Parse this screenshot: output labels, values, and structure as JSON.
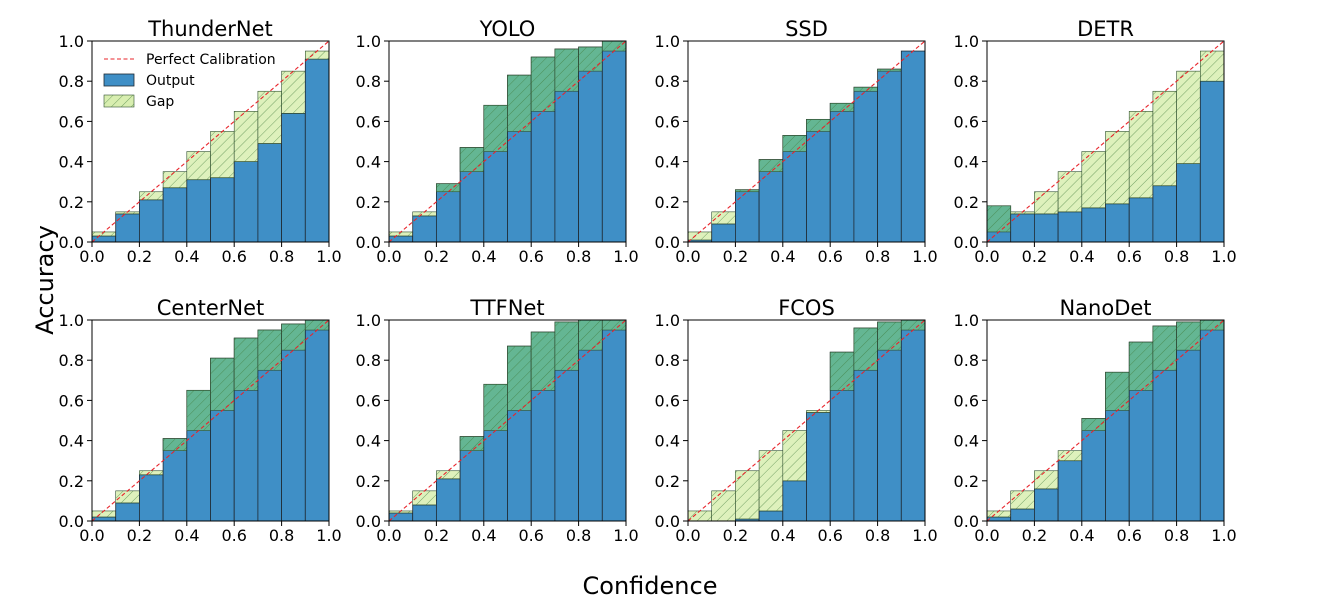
{
  "figure": {
    "xlabel": "Confidence",
    "ylabel": "Accuracy"
  },
  "legend": {
    "items": [
      {
        "label": "Perfect Calibration",
        "kind": "line"
      },
      {
        "label": "Output",
        "kind": "bar"
      },
      {
        "label": "Gap",
        "kind": "hatch"
      }
    ]
  },
  "colors": {
    "output": "#3f8fc6",
    "gap_over": "#6bbd8a",
    "gap_under": "#d8eeb0",
    "hatch": "#4a7a3a",
    "perfect_line": "#e8242b"
  },
  "chart_data": [
    {
      "type": "bar",
      "title": "ThunderNet",
      "xlim": [
        0,
        1
      ],
      "ylim": [
        0,
        1
      ],
      "xticks": [
        "0.0",
        "0.2",
        "0.4",
        "0.6",
        "0.8",
        "1.0"
      ],
      "yticks": [
        "0.0",
        "0.2",
        "0.4",
        "0.6",
        "0.8",
        "1.0"
      ],
      "bins": [
        0.05,
        0.15,
        0.25,
        0.35,
        0.45,
        0.55,
        0.65,
        0.75,
        0.85,
        0.95
      ],
      "accuracy": [
        0.03,
        0.14,
        0.21,
        0.27,
        0.31,
        0.32,
        0.4,
        0.49,
        0.64,
        0.91
      ],
      "series": [
        {
          "name": "Output"
        },
        {
          "name": "Gap"
        },
        {
          "name": "Perfect Calibration"
        }
      ]
    },
    {
      "type": "bar",
      "title": "YOLO",
      "xlim": [
        0,
        1
      ],
      "ylim": [
        0,
        1
      ],
      "xticks": [
        "0.0",
        "0.2",
        "0.4",
        "0.6",
        "0.8",
        "1.0"
      ],
      "yticks": [
        "0.0",
        "0.2",
        "0.4",
        "0.6",
        "0.8",
        "1.0"
      ],
      "bins": [
        0.05,
        0.15,
        0.25,
        0.35,
        0.45,
        0.55,
        0.65,
        0.75,
        0.85,
        0.95
      ],
      "accuracy": [
        0.03,
        0.13,
        0.29,
        0.47,
        0.68,
        0.83,
        0.92,
        0.96,
        0.97,
        1.0
      ]
    },
    {
      "type": "bar",
      "title": "SSD",
      "xlim": [
        0,
        1
      ],
      "ylim": [
        0,
        1
      ],
      "xticks": [
        "0.0",
        "0.2",
        "0.4",
        "0.6",
        "0.8",
        "1.0"
      ],
      "yticks": [
        "0.0",
        "0.2",
        "0.4",
        "0.6",
        "0.8",
        "1.0"
      ],
      "bins": [
        0.05,
        0.15,
        0.25,
        0.35,
        0.45,
        0.55,
        0.65,
        0.75,
        0.85,
        0.95
      ],
      "accuracy": [
        0.01,
        0.09,
        0.26,
        0.41,
        0.53,
        0.61,
        0.69,
        0.77,
        0.86,
        0.95
      ]
    },
    {
      "type": "bar",
      "title": "DETR",
      "xlim": [
        0,
        1
      ],
      "ylim": [
        0,
        1
      ],
      "xticks": [
        "0.0",
        "0.2",
        "0.4",
        "0.6",
        "0.8",
        "1.0"
      ],
      "yticks": [
        "0.0",
        "0.2",
        "0.4",
        "0.6",
        "0.8",
        "1.0"
      ],
      "bins": [
        0.05,
        0.15,
        0.25,
        0.35,
        0.45,
        0.55,
        0.65,
        0.75,
        0.85,
        0.95
      ],
      "accuracy": [
        0.18,
        0.14,
        0.14,
        0.15,
        0.17,
        0.19,
        0.22,
        0.28,
        0.39,
        0.8
      ]
    },
    {
      "type": "bar",
      "title": "CenterNet",
      "xlim": [
        0,
        1
      ],
      "ylim": [
        0,
        1
      ],
      "xticks": [
        "0.0",
        "0.2",
        "0.4",
        "0.6",
        "0.8",
        "1.0"
      ],
      "yticks": [
        "0.0",
        "0.2",
        "0.4",
        "0.6",
        "0.8",
        "1.0"
      ],
      "bins": [
        0.05,
        0.15,
        0.25,
        0.35,
        0.45,
        0.55,
        0.65,
        0.75,
        0.85,
        0.95
      ],
      "accuracy": [
        0.02,
        0.09,
        0.23,
        0.41,
        0.65,
        0.81,
        0.91,
        0.95,
        0.98,
        1.0
      ]
    },
    {
      "type": "bar",
      "title": "TTFNet",
      "xlim": [
        0,
        1
      ],
      "ylim": [
        0,
        1
      ],
      "xticks": [
        "0.0",
        "0.2",
        "0.4",
        "0.6",
        "0.8",
        "1.0"
      ],
      "yticks": [
        "0.0",
        "0.2",
        "0.4",
        "0.6",
        "0.8",
        "1.0"
      ],
      "bins": [
        0.05,
        0.15,
        0.25,
        0.35,
        0.45,
        0.55,
        0.65,
        0.75,
        0.85,
        0.95
      ],
      "accuracy": [
        0.04,
        0.08,
        0.21,
        0.42,
        0.68,
        0.87,
        0.94,
        0.99,
        1.0,
        1.0
      ]
    },
    {
      "type": "bar",
      "title": "FCOS",
      "xlim": [
        0,
        1
      ],
      "ylim": [
        0,
        1
      ],
      "xticks": [
        "0.0",
        "0.2",
        "0.4",
        "0.6",
        "0.8",
        "1.0"
      ],
      "yticks": [
        "0.0",
        "0.2",
        "0.4",
        "0.6",
        "0.8",
        "1.0"
      ],
      "bins": [
        0.05,
        0.15,
        0.25,
        0.35,
        0.45,
        0.55,
        0.65,
        0.75,
        0.85,
        0.95
      ],
      "accuracy": [
        0.0,
        0.0,
        0.01,
        0.05,
        0.2,
        0.54,
        0.84,
        0.96,
        0.99,
        1.0
      ]
    },
    {
      "type": "bar",
      "title": "NanoDet",
      "xlim": [
        0,
        1
      ],
      "ylim": [
        0,
        1
      ],
      "xticks": [
        "0.0",
        "0.2",
        "0.4",
        "0.6",
        "0.8",
        "1.0"
      ],
      "yticks": [
        "0.0",
        "0.2",
        "0.4",
        "0.6",
        "0.8",
        "1.0"
      ],
      "bins": [
        0.05,
        0.15,
        0.25,
        0.35,
        0.45,
        0.55,
        0.65,
        0.75,
        0.85,
        0.95
      ],
      "accuracy": [
        0.02,
        0.06,
        0.16,
        0.3,
        0.51,
        0.74,
        0.89,
        0.97,
        0.99,
        1.0
      ]
    }
  ]
}
